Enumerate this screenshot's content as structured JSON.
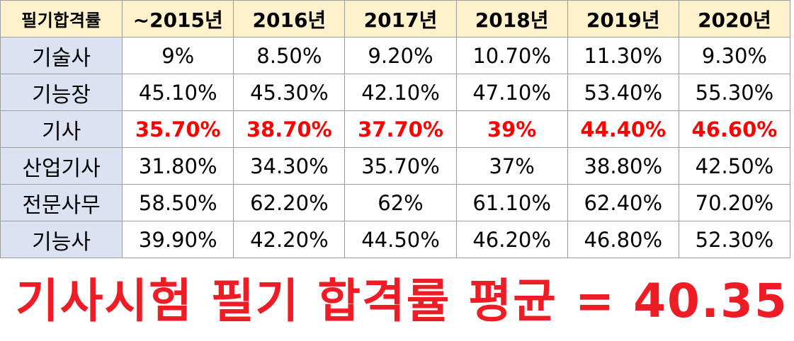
{
  "table": {
    "corner_label": "필기합격률",
    "columns": [
      "~2015년",
      "2016년",
      "2017년",
      "2018년",
      "2019년",
      "2020년"
    ],
    "rows": [
      {
        "label": "기술사",
        "values": [
          "9%",
          "8.50%",
          "9.20%",
          "10.70%",
          "11.30%",
          "9.30%"
        ],
        "highlight": false
      },
      {
        "label": "기능장",
        "values": [
          "45.10%",
          "45.30%",
          "42.10%",
          "47.10%",
          "53.40%",
          "55.30%"
        ],
        "highlight": false
      },
      {
        "label": "기사",
        "values": [
          "35.70%",
          "38.70%",
          "37.70%",
          "39%",
          "44.40%",
          "46.60%"
        ],
        "highlight": true
      },
      {
        "label": "산업기사",
        "values": [
          "31.80%",
          "34.30%",
          "35.70%",
          "37%",
          "38.80%",
          "42.50%"
        ],
        "highlight": false
      },
      {
        "label": "전문사무",
        "values": [
          "58.50%",
          "62.20%",
          "62%",
          "61.10%",
          "62.40%",
          "70.20%"
        ],
        "highlight": false
      },
      {
        "label": "기능사",
        "values": [
          "39.90%",
          "42.20%",
          "44.50%",
          "46.20%",
          "46.80%",
          "52.30%"
        ],
        "highlight": false
      }
    ]
  },
  "summary": "기사시험 필기 합격률 평균 = 40.35%",
  "colors": {
    "header_bg": "#fdf2cc",
    "row_label_bg": "#dbe3f2",
    "highlight_text": "#ff0000",
    "summary_text": "#ee1c24",
    "grid_line": "#9e9e9e"
  }
}
